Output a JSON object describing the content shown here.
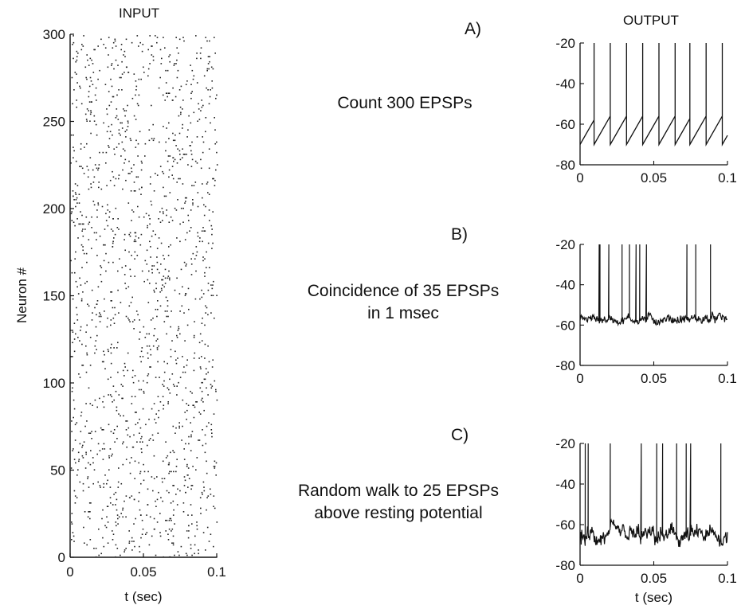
{
  "headers": {
    "input": "INPUT",
    "output": "OUTPUT"
  },
  "panels": [
    {
      "letter": "A)",
      "description_lines": [
        "Count 300 EPSPs"
      ]
    },
    {
      "letter": "B)",
      "description_lines": [
        "Coincidence of 35 EPSPs",
        "in 1 msec"
      ]
    },
    {
      "letter": "C)",
      "description_lines": [
        "Random walk to 25 EPSPs",
        "above resting potential"
      ]
    }
  ],
  "chart_data": [
    {
      "type": "scatter",
      "title": "INPUT",
      "xlabel": "t (sec)",
      "ylabel": "Neuron #",
      "xlim": [
        0,
        0.1
      ],
      "ylim": [
        0,
        300
      ],
      "x_ticks": [
        "0",
        "0.05",
        "0.1"
      ],
      "y_ticks": [
        "0",
        "50",
        "100",
        "150",
        "200",
        "250",
        "300"
      ],
      "series": [
        {
          "marker": "dot",
          "neurons": 300,
          "approx_spikes_per_neuron": 5
        }
      ]
    },
    {
      "type": "line",
      "panel": "A)",
      "xlim": [
        0,
        0.1
      ],
      "ylim": [
        -80,
        -20
      ],
      "x_ticks": [
        "0",
        "0.05",
        "0.1"
      ],
      "y_ticks": [
        "-20",
        "-40",
        "-60",
        "-80"
      ],
      "reset": -70,
      "threshold": -56,
      "spike_peak": -20,
      "spike_times": [
        0.0095,
        0.0205,
        0.0315,
        0.0425,
        0.0535,
        0.0645,
        0.0745,
        0.0855,
        0.0965
      ]
    },
    {
      "type": "line",
      "panel": "B)",
      "xlim": [
        0,
        0.1
      ],
      "ylim": [
        -80,
        -20
      ],
      "x_ticks": [
        "0",
        "0.05",
        "0.1"
      ],
      "y_ticks": [
        "-20",
        "-40",
        "-60",
        "-80"
      ],
      "baseline": -57,
      "spike_peak": -20,
      "spike_times": [
        0.013,
        0.0135,
        0.0195,
        0.0285,
        0.0335,
        0.038,
        0.0405,
        0.045,
        0.0725,
        0.0785,
        0.0885
      ]
    },
    {
      "type": "line",
      "panel": "C)",
      "xlim": [
        0,
        0.1
      ],
      "ylim": [
        -80,
        -20
      ],
      "x_ticks": [
        "0",
        "0.05",
        "0.1"
      ],
      "y_ticks": [
        "-20",
        "-40",
        "-60",
        "-80"
      ],
      "xlabel": "t (sec)",
      "baseline": -66,
      "spike_peak": -20,
      "spike_times": [
        0.0035,
        0.0055,
        0.0205,
        0.0415,
        0.052,
        0.056,
        0.0655,
        0.072,
        0.075,
        0.0955
      ]
    }
  ]
}
